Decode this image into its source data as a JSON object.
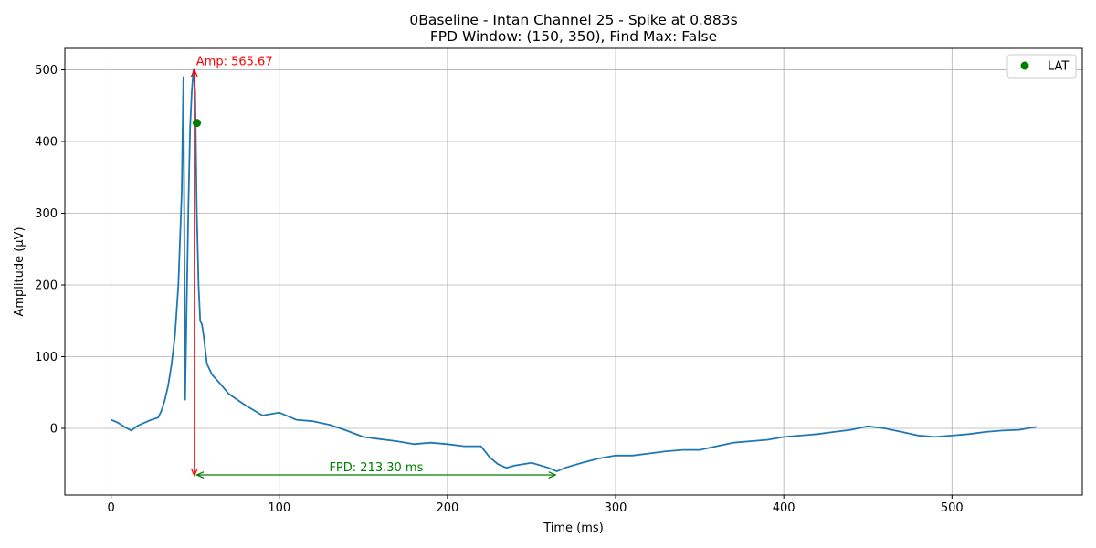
{
  "chart_data": {
    "type": "line",
    "title_line1": "0Baseline - Intan Channel 25 - Spike at 0.883s",
    "title_line2": "FPD Window: (150, 350), Find Max: False",
    "xlabel": "Time (ms)",
    "ylabel": "Amplitude (µV)",
    "xlim": [
      -27.5,
      577.5
    ],
    "ylim": [
      -93,
      530
    ],
    "xticks": [
      0,
      100,
      200,
      300,
      400,
      500
    ],
    "yticks": [
      0,
      100,
      200,
      300,
      400,
      500
    ],
    "grid": true,
    "legend": {
      "placement": "top-right",
      "entries": [
        {
          "label": "LAT",
          "color": "#008000",
          "marker": "circle"
        }
      ]
    },
    "series": [
      {
        "color": "#1f77b4",
        "x": [
          0,
          4,
          8,
          12,
          16,
          20,
          24,
          28,
          30,
          32,
          34,
          36,
          38,
          40,
          42,
          43,
          43.5,
          44,
          45,
          46,
          47,
          48,
          49,
          50,
          51,
          52,
          53,
          54,
          55,
          57,
          60,
          65,
          70,
          75,
          80,
          90,
          100,
          110,
          120,
          130,
          140,
          150,
          160,
          170,
          180,
          190,
          200,
          210,
          220,
          225,
          230,
          235,
          240,
          250,
          260,
          265,
          270,
          280,
          290,
          300,
          310,
          320,
          330,
          340,
          350,
          360,
          370,
          380,
          390,
          400,
          410,
          420,
          430,
          440,
          450,
          460,
          470,
          480,
          490,
          500,
          510,
          520,
          530,
          540,
          550
        ],
        "y": [
          12,
          8,
          2,
          -3,
          4,
          8,
          12,
          15,
          25,
          40,
          60,
          90,
          130,
          200,
          330,
          490,
          300,
          40,
          180,
          310,
          420,
          470,
          500,
          470,
          300,
          200,
          150,
          145,
          130,
          90,
          75,
          62,
          48,
          40,
          32,
          18,
          22,
          12,
          10,
          5,
          -3,
          -12,
          -15,
          -18,
          -22,
          -20,
          -22,
          -25,
          -25,
          -40,
          -50,
          -55,
          -52,
          -48,
          -55,
          -60,
          -55,
          -48,
          -42,
          -38,
          -38,
          -35,
          -32,
          -30,
          -30,
          -25,
          -20,
          -18,
          -16,
          -12,
          -10,
          -8,
          -5,
          -2,
          3,
          0,
          -5,
          -10,
          -12,
          -10,
          -8,
          -5,
          -3,
          -2,
          2
        ]
      }
    ],
    "lat_point": {
      "x": 51,
      "y": 426,
      "color": "#008000"
    },
    "amp_annotation": {
      "text": "Amp: 565.67",
      "x": 49.5,
      "y_top": 500,
      "y_bottom": -65.67,
      "color": "#ff0000"
    },
    "fpd_annotation": {
      "text": "FPD: 213.30 ms",
      "x_start": 51,
      "x_end": 264.3,
      "y": -65,
      "color": "#008000"
    }
  }
}
